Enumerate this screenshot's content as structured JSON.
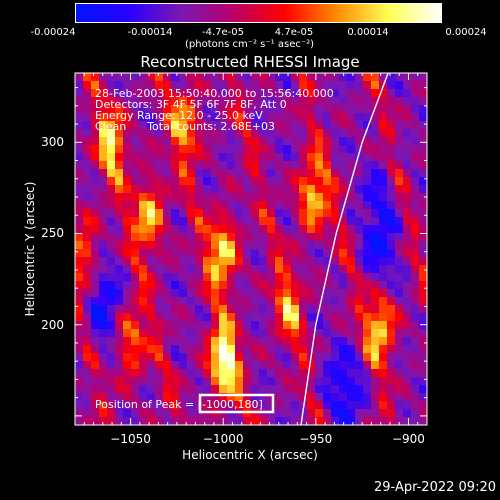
{
  "colorbar": {
    "tick_labels": [
      "-0.00024",
      "-0.00014",
      "-4.7e-05",
      "4.7e-05",
      "0.00014",
      "0.00024"
    ],
    "units_label": "(photons cm⁻² s⁻¹ asec⁻²)",
    "colors": [
      "#0014ff",
      "#2a00ff",
      "#7a17b5",
      "#b8006a",
      "#ff0000",
      "#ff8c00",
      "#ffff55",
      "#ffffff"
    ]
  },
  "title": "Reconstructed RHESSI Image",
  "info_lines": [
    "28-Feb-2003 15:50:40.000 to 15:56:40.000",
    "Detectors: 3F 4F 5F 6F 7F 8F, Att 0",
    "Energy Range: 12.0 - 25.0 keV",
    "Clean      Total counts: 2.68E+03"
  ],
  "peak_label": "Position of Peak = ",
  "peak_value": "[-1000,180]",
  "timestamp": "29-Apr-2022 09:20",
  "chart_data": {
    "type": "heatmap",
    "title": "Reconstructed RHESSI Image",
    "xlabel": "Heliocentric X (arcsec)",
    "ylabel": "Heliocentric Y (arcsec)",
    "xlim": [
      -1080,
      -890
    ],
    "ylim": [
      145,
      338
    ],
    "x_ticks": [
      -1050,
      -1000,
      -950,
      -900
    ],
    "x_tick_labels": [
      "−1050",
      "−1000",
      "−950",
      "−900"
    ],
    "y_ticks": [
      200,
      250,
      300
    ],
    "y_tick_labels": [
      "200",
      "250",
      "300"
    ],
    "colorbar_range": [
      -0.00024,
      0.00024
    ],
    "peak_position": [
      -1000,
      180
    ],
    "limb_line": [
      [
        -958,
        145
      ],
      [
        -950,
        200
      ],
      [
        -939,
        250
      ],
      [
        -925,
        300
      ],
      [
        -911,
        338
      ]
    ],
    "bright_sources": [
      {
        "x": -1000,
        "y": 180,
        "intensity": 1.0
      },
      {
        "x": -1000,
        "y": 240,
        "intensity": 0.8
      },
      {
        "x": -1040,
        "y": 260,
        "intensity": 0.75
      },
      {
        "x": -1060,
        "y": 300,
        "intensity": 0.7
      },
      {
        "x": -952,
        "y": 270,
        "intensity": 0.75
      },
      {
        "x": -1020,
        "y": 310,
        "intensity": 0.6
      },
      {
        "x": -915,
        "y": 200,
        "intensity": 0.8
      },
      {
        "x": -1050,
        "y": 190,
        "intensity": 0.6
      },
      {
        "x": -965,
        "y": 210,
        "intensity": 0.5
      },
      {
        "x": -1075,
        "y": 240,
        "intensity": 0.55
      }
    ]
  }
}
